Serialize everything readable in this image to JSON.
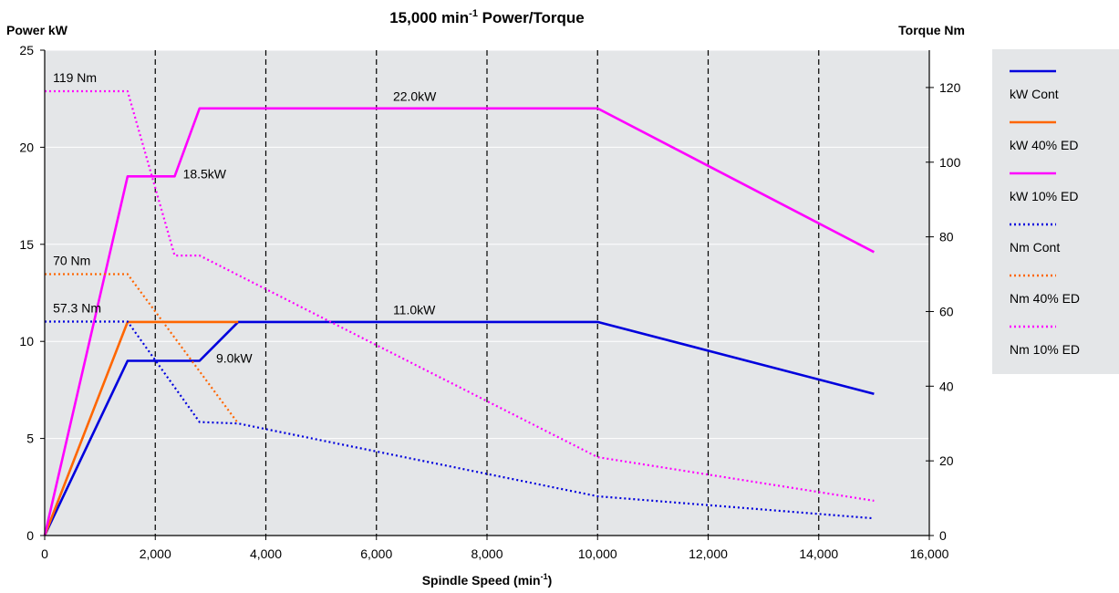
{
  "chart_data": {
    "type": "line",
    "title": "15,000 min",
    "title_superscript": "-1",
    "title_suffix": " Power/Torque",
    "ylabel": "Power kW",
    "y2label": "Torque Nm",
    "xlabel": "Spindle Speed (min",
    "xlabel_superscript": "-1",
    "xlabel_suffix": ")",
    "xlim": [
      0,
      16000
    ],
    "ylim": [
      0,
      25
    ],
    "y2lim": [
      0,
      130
    ],
    "xticks": [
      0,
      2000,
      4000,
      6000,
      8000,
      10000,
      12000,
      14000,
      16000
    ],
    "xtick_labels": [
      "0",
      "2,000",
      "4,000",
      "6,000",
      "8,000",
      "10,000",
      "12,000",
      "14,000",
      "16,000"
    ],
    "yticks": [
      0,
      5,
      10,
      15,
      20,
      25
    ],
    "ytick_labels": [
      "0",
      "5",
      "10",
      "15",
      "20",
      "25"
    ],
    "y2ticks": [
      0,
      20,
      40,
      60,
      80,
      100,
      120
    ],
    "y2tick_labels": [
      "0",
      "20",
      "40",
      "60",
      "80",
      "100",
      "120"
    ],
    "vertical_dashed_lines": [
      2000,
      4000,
      6000,
      8000,
      10000,
      12000,
      14000
    ],
    "grid": "horizontal at power ticks",
    "legend_position": "right",
    "plot_background": "#e4e6e8",
    "series": [
      {
        "name": "kW Cont",
        "axis": "left",
        "style": "solid",
        "color": "#0000dd",
        "points": [
          [
            0,
            0
          ],
          [
            1500,
            9.0
          ],
          [
            2800,
            9.0
          ],
          [
            3500,
            11.0
          ],
          [
            10000,
            11.0
          ],
          [
            15000,
            7.3
          ]
        ]
      },
      {
        "name": "kW 40% ED",
        "axis": "left",
        "style": "solid",
        "color": "#ff6600",
        "points": [
          [
            0,
            0
          ],
          [
            1500,
            11.0
          ],
          [
            3500,
            11.0
          ]
        ]
      },
      {
        "name": "kW 10% ED",
        "axis": "left",
        "style": "solid",
        "color": "#ff00ff",
        "points": [
          [
            0,
            0
          ],
          [
            1500,
            18.5
          ],
          [
            2350,
            18.5
          ],
          [
            2800,
            22.0
          ],
          [
            10000,
            22.0
          ],
          [
            15000,
            14.6
          ]
        ]
      },
      {
        "name": "Nm Cont",
        "axis": "right",
        "style": "dotted",
        "color": "#0000dd",
        "points": [
          [
            0,
            57.3
          ],
          [
            1500,
            57.3
          ],
          [
            2800,
            30.4
          ],
          [
            3500,
            30.0
          ],
          [
            10000,
            10.5
          ],
          [
            15000,
            4.6
          ]
        ]
      },
      {
        "name": "Nm 40% ED",
        "axis": "right",
        "style": "dotted",
        "color": "#ff6600",
        "points": [
          [
            0,
            70.0
          ],
          [
            1500,
            70.0
          ],
          [
            3500,
            30.0
          ]
        ]
      },
      {
        "name": "Nm 10% ED",
        "axis": "right",
        "style": "dotted",
        "color": "#ff00ff",
        "points": [
          [
            0,
            119.0
          ],
          [
            1500,
            119.0
          ],
          [
            2350,
            75.0
          ],
          [
            2800,
            75.0
          ],
          [
            10000,
            21.0
          ],
          [
            15000,
            9.3
          ]
        ]
      }
    ],
    "annotations": [
      {
        "text": "119 Nm",
        "x": 150,
        "y2": 121.5
      },
      {
        "text": "70 Nm",
        "x": 150,
        "y2": 72.5
      },
      {
        "text": "57.3 Nm",
        "x": 150,
        "y2": 59.7
      },
      {
        "text": "22.0kW",
        "x": 6300,
        "y": 22.4
      },
      {
        "text": "18.5kW",
        "x": 2500,
        "y": 18.4
      },
      {
        "text": "11.0kW",
        "x": 6300,
        "y": 11.4
      },
      {
        "text": "9.0kW",
        "x": 3100,
        "y": 8.9
      }
    ]
  }
}
